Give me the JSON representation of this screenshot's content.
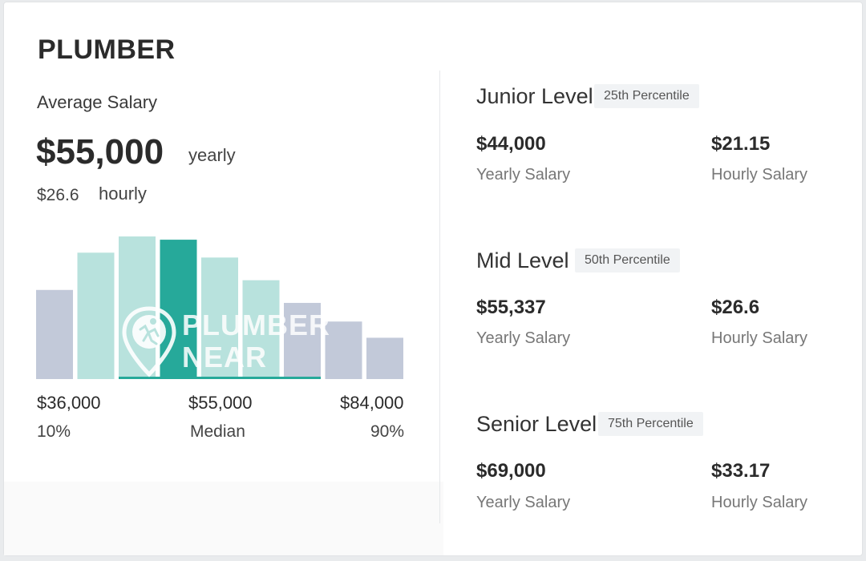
{
  "title": "PLUMBER",
  "average": {
    "label": "Average Salary",
    "yearly_value": "$55,000",
    "yearly_unit": "yearly",
    "hourly_value": "$26.6",
    "hourly_unit": "hourly"
  },
  "chart_data": {
    "type": "bar",
    "values": [
      110,
      156,
      176,
      172,
      150,
      122,
      94,
      71,
      51
    ],
    "highlight_index": 3,
    "colors": {
      "low": "#c2c9d9",
      "mid": "#b8e2dd",
      "highlight": "#26a99a",
      "baseline": "#26a99a"
    },
    "scale": {
      "min_value": "$36,000",
      "min_label": "10%",
      "median_value": "$55,000",
      "median_label": "Median",
      "max_value": "$84,000",
      "max_label": "90%"
    }
  },
  "watermark": {
    "line1": "PLUMBER",
    "line2": "NEAR ME"
  },
  "levels": [
    {
      "name": "Junior Level",
      "percentile": "25th Percentile",
      "yearly": "$44,000",
      "yearly_label": "Yearly Salary",
      "hourly": "$21.15",
      "hourly_label": "Hourly Salary"
    },
    {
      "name": "Mid Level",
      "percentile": "50th Percentile",
      "yearly": "$55,337",
      "yearly_label": "Yearly Salary",
      "hourly": "$26.6",
      "hourly_label": "Hourly Salary"
    },
    {
      "name": "Senior Level",
      "percentile": "75th Percentile",
      "yearly": "$69,000",
      "yearly_label": "Yearly Salary",
      "hourly": "$33.17",
      "hourly_label": "Hourly Salary"
    }
  ]
}
